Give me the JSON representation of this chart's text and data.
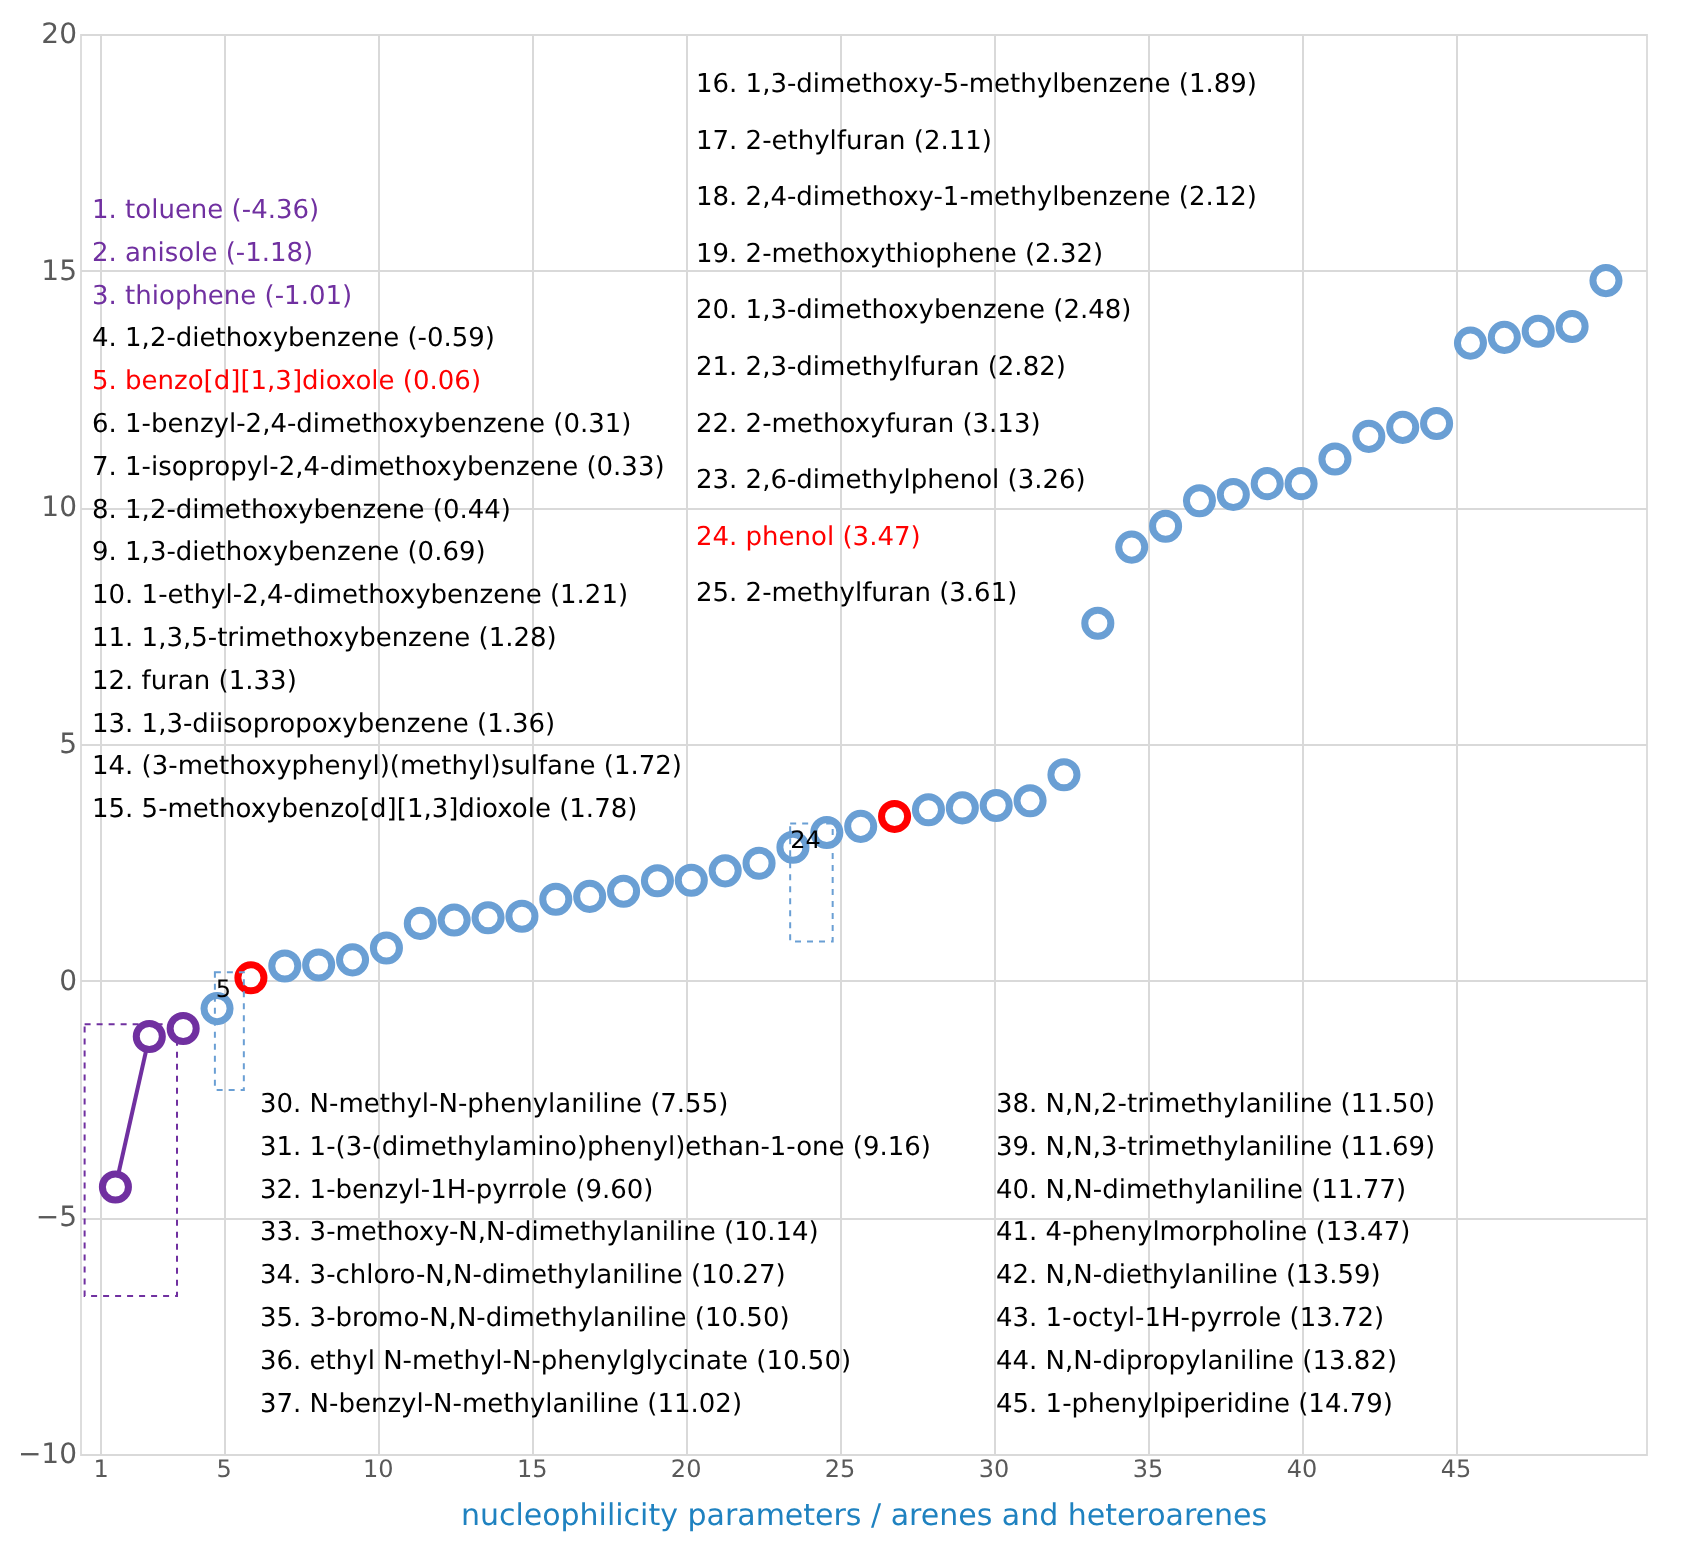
{
  "chart_data": {
    "type": "scatter",
    "xlabel": "nucleophilicity parameters / arenes and heteroarenes",
    "xlim": [
      0.35,
      51.2
    ],
    "ylim": [
      -10,
      20
    ],
    "xticks": [
      1,
      5,
      10,
      15,
      20,
      25,
      30,
      35,
      40,
      45
    ],
    "yticks": [
      -10,
      -5,
      0,
      5,
      10,
      15,
      20
    ],
    "grid": true,
    "marker": "circle",
    "line_style": "solid",
    "series": [
      {
        "type": "line",
        "color": "#7030a0",
        "x": [
          1.5,
          2.6
        ],
        "values": [
          -4.36,
          -1.18
        ]
      },
      {
        "type": "scatter",
        "color": "#7030a0",
        "x": [
          3.7
        ],
        "values": [
          -1.01
        ]
      },
      {
        "type": "scatter",
        "color": "#ff0000",
        "x": [
          5.9,
          26.8
        ],
        "values": [
          0.06,
          3.47
        ]
      },
      {
        "type": "scatter",
        "color": "#6a9fd4",
        "x": [
          4.8,
          7.0,
          8.1,
          9.2,
          10.3,
          11.4,
          12.5,
          13.6,
          14.7,
          15.8,
          16.9,
          18.0,
          19.1,
          20.2,
          21.3,
          22.4,
          23.5,
          24.6,
          25.7,
          27.9,
          29.0,
          30.1,
          31.2,
          32.3,
          33.4,
          34.5,
          35.6,
          36.7,
          37.8,
          38.9,
          40.0,
          41.1,
          42.2,
          43.3,
          44.4,
          45.5,
          46.6,
          47.7,
          48.8,
          49.9
        ],
        "values": [
          -0.59,
          0.31,
          0.33,
          0.44,
          0.69,
          1.21,
          1.28,
          1.33,
          1.36,
          1.72,
          1.78,
          1.89,
          2.11,
          2.12,
          2.32,
          2.48,
          2.82,
          3.13,
          3.26,
          3.61,
          3.65,
          3.7,
          3.8,
          4.35,
          7.55,
          9.16,
          9.6,
          10.14,
          10.27,
          10.5,
          10.5,
          11.02,
          11.5,
          11.69,
          11.77,
          13.47,
          13.59,
          13.72,
          13.82,
          14.79
        ]
      }
    ],
    "annotations": [
      "1. toluene (-4.36)",
      "2. anisole (-1.18)",
      "3. thiophene (-1.01)",
      "4. 1,2-diethoxybenzene (-0.59)",
      "5. benzo[d][1,3]dioxole (0.06)",
      "6. 1-benzyl-2,4-dimethoxybenzene (0.31)",
      "7. 1-isopropyl-2,4-dimethoxybenzene (0.33)",
      "8. 1,2-dimethoxybenzene (0.44)",
      "9. 1,3-diethoxybenzene (0.69)",
      "10. 1-ethyl-2,4-dimethoxybenzene (1.21)",
      "11. 1,3,5-trimethoxybenzene (1.28)",
      "12. furan (1.33)",
      "13. 1,3-diisopropoxybenzene (1.36)",
      "14. (3-methoxyphenyl)(methyl)sulfane (1.72)",
      "15. 5-methoxybenzo[d][1,3]dioxole (1.78)",
      "16. 1,3-dimethoxy-5-methylbenzene (1.89)",
      "17. 2-ethylfuran (2.11)",
      "18. 2,4-dimethoxy-1-methylbenzene (2.12)",
      "19. 2-methoxythiophene (2.32)",
      "20. 1,3-dimethoxybenzene (2.48)",
      "21. 2,3-dimethylfuran (2.82)",
      "22. 2-methoxyfuran (3.13)",
      "23. 2,6-dimethylphenol (3.26)",
      "24. phenol (3.47)",
      "25. 2-methylfuran (3.61)",
      "30. N-methyl-N-phenylaniline (7.55)",
      "31. 1-(3-(dimethylamino)phenyl)ethan-1-one (9.16)",
      "32. 1-benzyl-1H-pyrrole (9.60)",
      "33. 3-methoxy-N,N-dimethylaniline (10.14)",
      "34. 3-chloro-N,N-dimethylaniline (10.27)",
      "35. 3-bromo-N,N-dimethylaniline (10.50)",
      "36. ethyl N-methyl-N-phenylglycinate (10.50)",
      "37. N-benzyl-N-methylaniline (11.02)",
      "38. N,N,2-trimethylaniline (11.50)",
      "39. N,N,3-trimethylaniline (11.69)",
      "40. N,N-dimethylaniline (11.77)",
      "41. 4-phenylmorpholine (13.47)",
      "42. N,N-diethylaniline (13.59)",
      "43. 1-octyl-1H-pyrrole (13.72)",
      "44. N,N-dipropylaniline (13.82)",
      "45. 1-phenylpiperidine (14.79)",
      {
        "text": "5",
        "x": 5.2,
        "y": -0.34
      },
      {
        "text": "24",
        "x": 24.1,
        "y": 2.8
      }
    ]
  }
}
